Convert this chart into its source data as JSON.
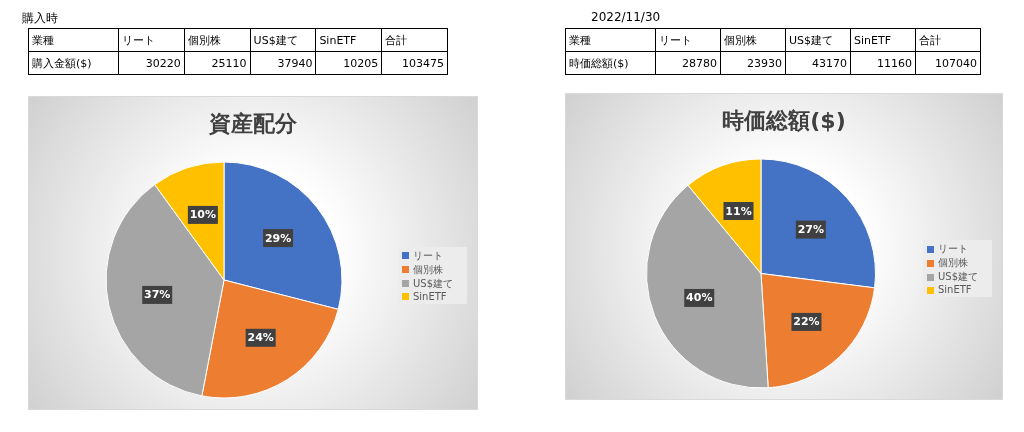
{
  "chart_data": [
    {
      "type": "pie",
      "title": "資産配分",
      "categories": [
        "リート",
        "個別株",
        "US$建て",
        "SinETF"
      ],
      "values": [
        29,
        24,
        37,
        10
      ],
      "colors": [
        "#4472c4",
        "#ed7d31",
        "#a5a5a5",
        "#ffc000"
      ],
      "value_labels": [
        "29%",
        "24%",
        "37%",
        "10%"
      ],
      "legend": "right",
      "annotations": [
        "購入時",
        "業種",
        "購入金額($)",
        "合計",
        "30220",
        "25110",
        "37940",
        "10205",
        "103475"
      ]
    },
    {
      "type": "pie",
      "title": "時価総額($)",
      "categories": [
        "リート",
        "個別株",
        "US$建て",
        "SinETF"
      ],
      "values": [
        27,
        22,
        40,
        11
      ],
      "colors": [
        "#4472c4",
        "#ed7d31",
        "#a5a5a5",
        "#ffc000"
      ],
      "value_labels": [
        "27%",
        "22%",
        "40%",
        "11%"
      ],
      "legend": "right",
      "annotations": [
        "2022/11/30",
        "業種",
        "時価総額($)",
        "合計",
        "28780",
        "23930",
        "43170",
        "11160",
        "107040"
      ]
    }
  ]
}
